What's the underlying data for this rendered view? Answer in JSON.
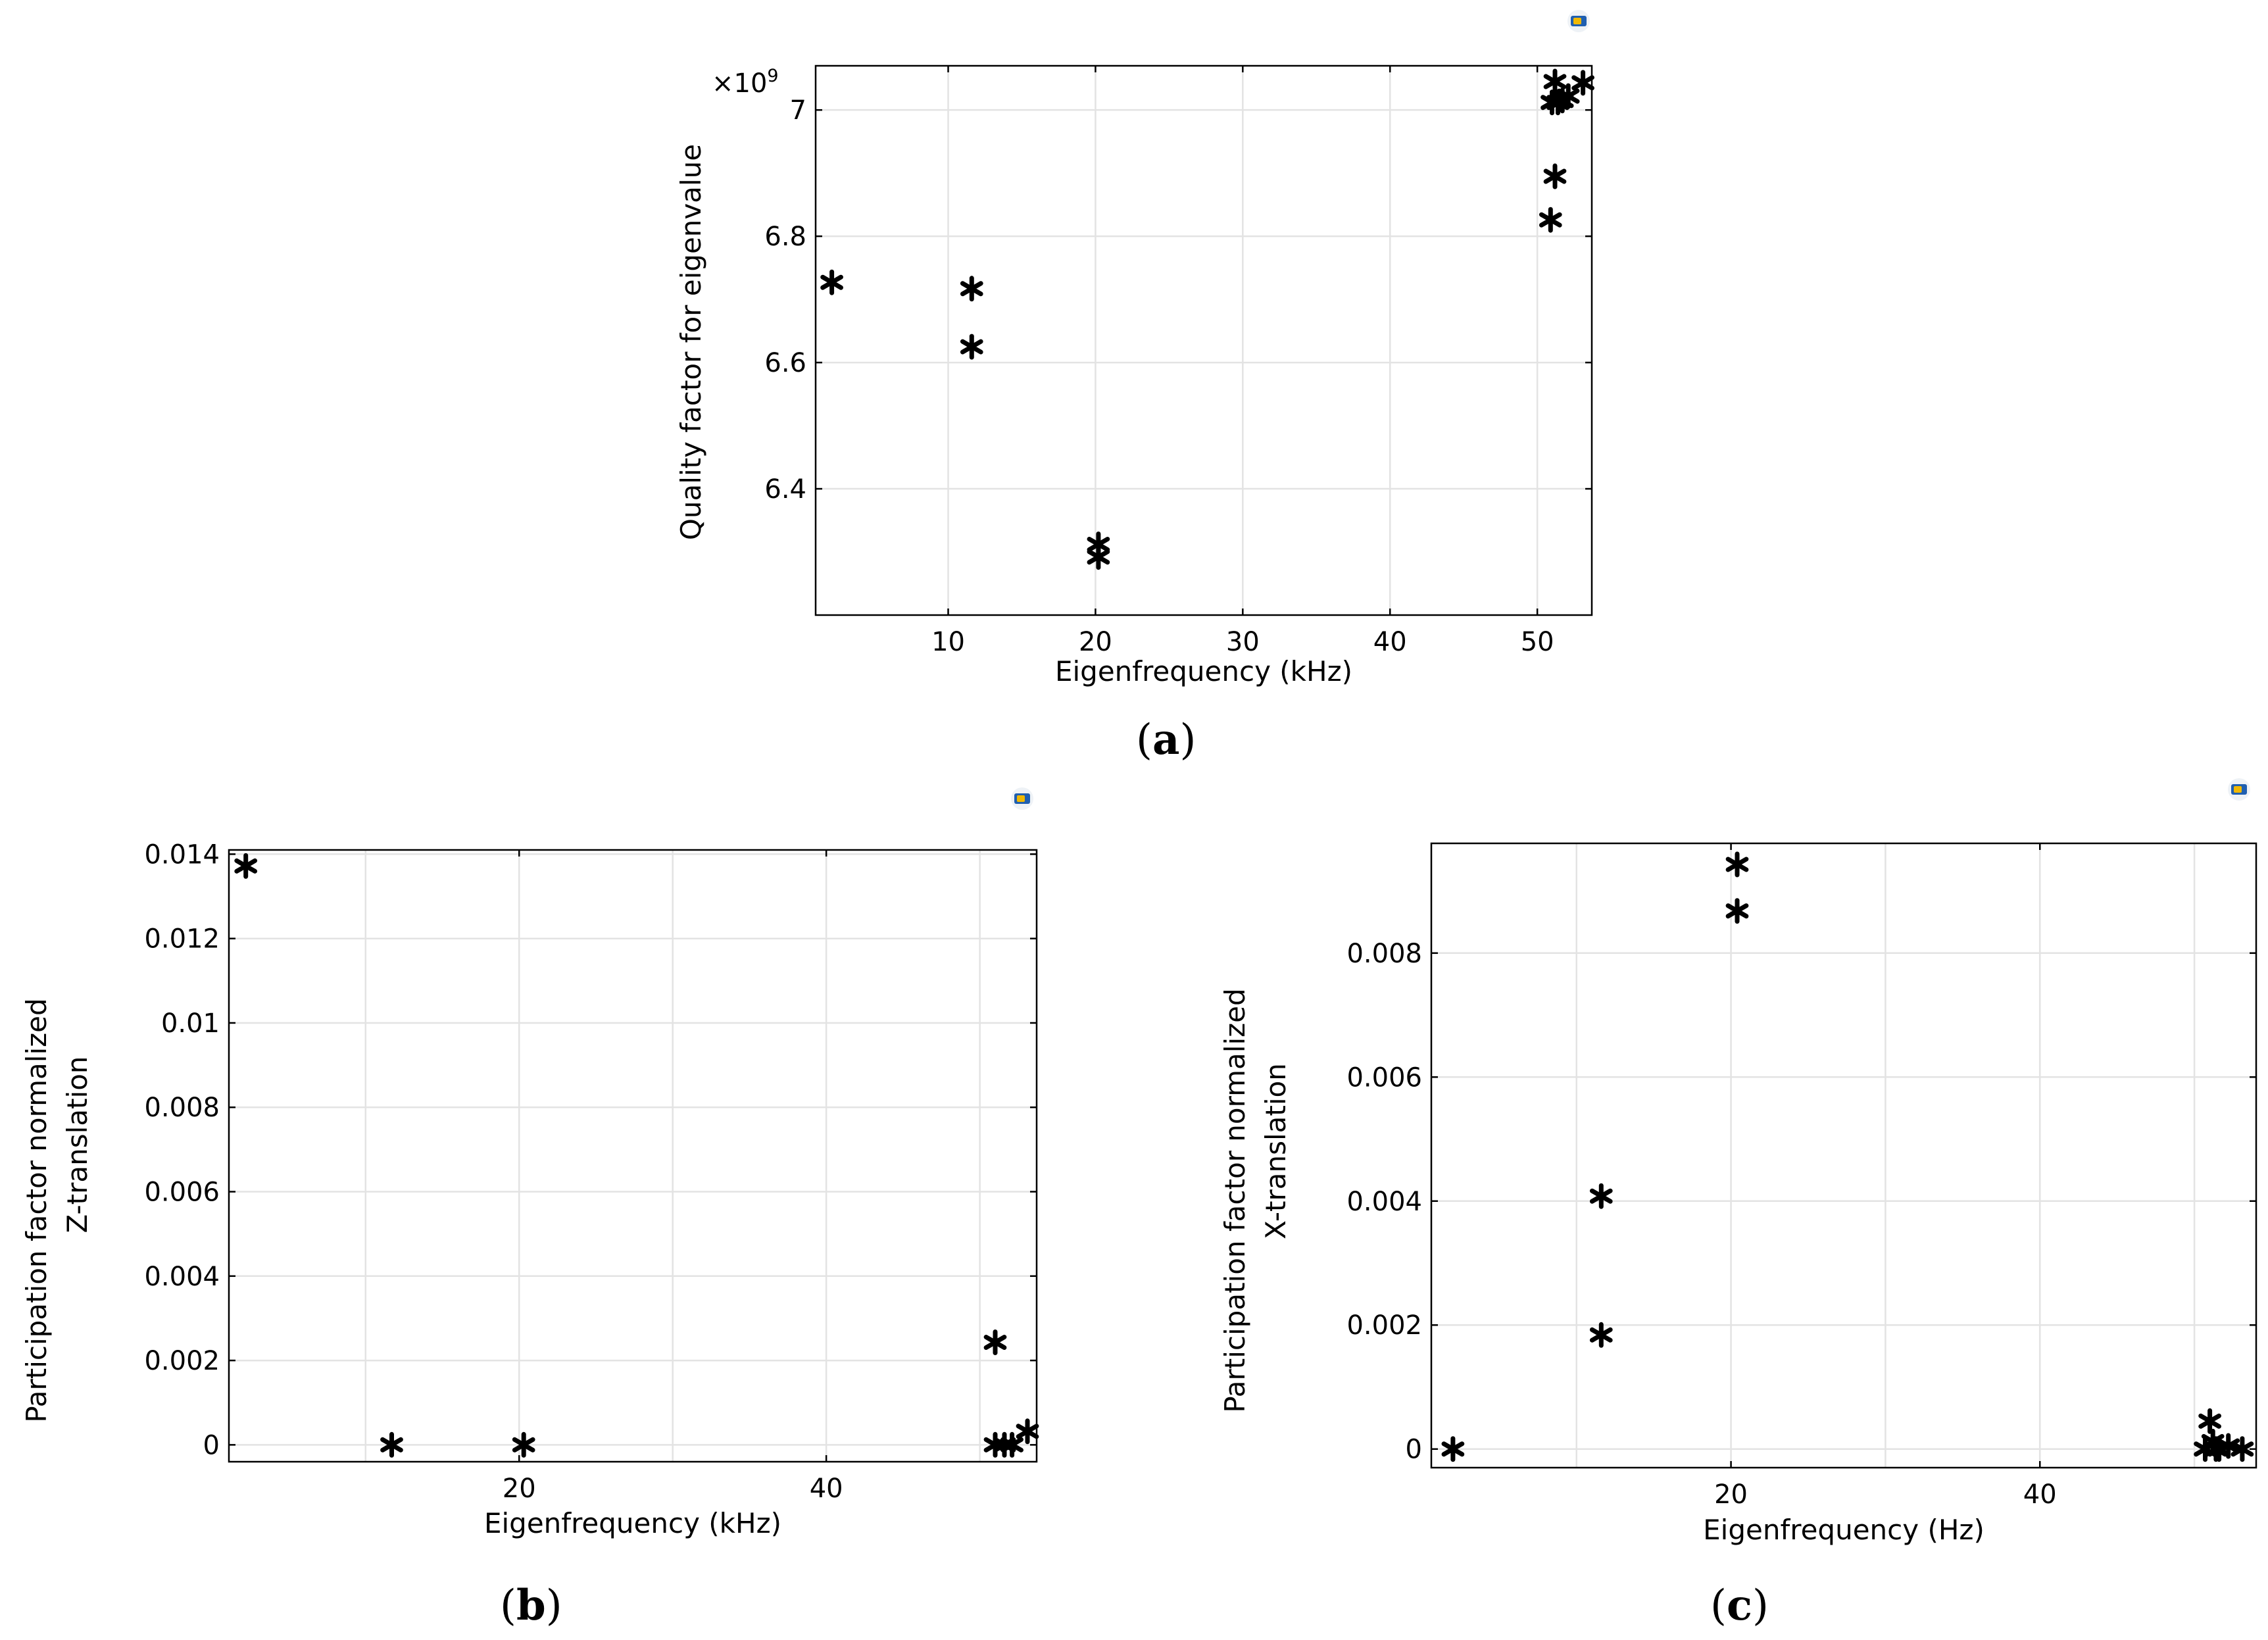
{
  "chart_data": [
    {
      "id": "a",
      "type": "scatter",
      "caption": "a",
      "title": "",
      "xlabel": "Eigenfrequency (kHz)",
      "ylabel": "Quality factor for eigenvalue",
      "y_multiplier_label": "×10",
      "y_multiplier_exp": "9",
      "xlim": [
        1,
        53.7
      ],
      "ylim": [
        6.2,
        7.07
      ],
      "x_ticks": [
        10,
        20,
        30,
        40,
        50
      ],
      "x_tick_labels": [
        "10",
        "20",
        "30",
        "40",
        "50"
      ],
      "y_ticks": [
        6.4,
        6.6,
        6.8,
        7.0
      ],
      "y_tick_labels": [
        "6.4",
        "6.6",
        "6.8",
        "7"
      ],
      "grid": true,
      "marker": "asterisk",
      "x": [
        2.1,
        11.6,
        11.6,
        20.2,
        20.2,
        50.9,
        51.2,
        51.0,
        51.2,
        51.4,
        51.7,
        52.1,
        53.1
      ],
      "y": [
        6.727,
        6.717,
        6.625,
        6.312,
        6.292,
        6.826,
        6.895,
        7.012,
        7.045,
        7.012,
        7.015,
        7.022,
        7.043
      ]
    },
    {
      "id": "b",
      "type": "scatter",
      "caption": "b",
      "title": "",
      "xlabel": "Eigenfrequency (kHz)",
      "ylabel": "Participation factor normalized",
      "ylabel2": "Z-translation",
      "xlim": [
        1.1,
        53.7
      ],
      "ylim": [
        -0.0004,
        0.0141
      ],
      "x_ticks": [
        20,
        40
      ],
      "x_tick_labels": [
        "20",
        "40"
      ],
      "minor_x_grid": [
        10,
        30,
        50
      ],
      "y_ticks": [
        0,
        0.002,
        0.004,
        0.006,
        0.008,
        0.01,
        0.012,
        0.014
      ],
      "y_tick_labels": [
        "0",
        "0.002",
        "0.004",
        "0.006",
        "0.008",
        "0.01",
        "0.012",
        "0.014"
      ],
      "grid": true,
      "marker": "asterisk",
      "x": [
        2.2,
        11.7,
        20.3,
        51.0,
        51.0,
        51.6,
        52.1,
        53.1
      ],
      "y": [
        0.01372,
        0.0,
        0.0,
        0.00243,
        0.0,
        0.0,
        0.0,
        0.00032
      ]
    },
    {
      "id": "c",
      "type": "scatter",
      "caption": "c",
      "title": "",
      "xlabel": "Eigenfrequency (Hz)",
      "ylabel": "Participation factor normalized",
      "ylabel2": "X-translation",
      "xlim": [
        0.6,
        54.0
      ],
      "ylim": [
        -0.0003,
        0.00977
      ],
      "x_ticks": [
        20,
        40
      ],
      "x_tick_labels": [
        "20",
        "40"
      ],
      "minor_x_grid": [
        10,
        30,
        50
      ],
      "y_ticks": [
        0,
        0.002,
        0.004,
        0.006,
        0.008
      ],
      "y_tick_labels": [
        "0",
        "0.002",
        "0.004",
        "0.006",
        "0.008"
      ],
      "grid": true,
      "marker": "asterisk",
      "x": [
        2.0,
        11.6,
        11.6,
        20.4,
        20.4,
        50.7,
        51.0,
        51.2,
        51.4,
        51.6,
        52.2,
        53.1
      ],
      "y": [
        0.0,
        0.00408,
        0.00184,
        0.00943,
        0.00868,
        0.0,
        0.00045,
        0.00012,
        0.0,
        0.0,
        5e-05,
        0.0
      ]
    }
  ],
  "icons": [
    "comsol-logo-icon",
    "comsol-logo-icon",
    "comsol-logo-icon"
  ]
}
